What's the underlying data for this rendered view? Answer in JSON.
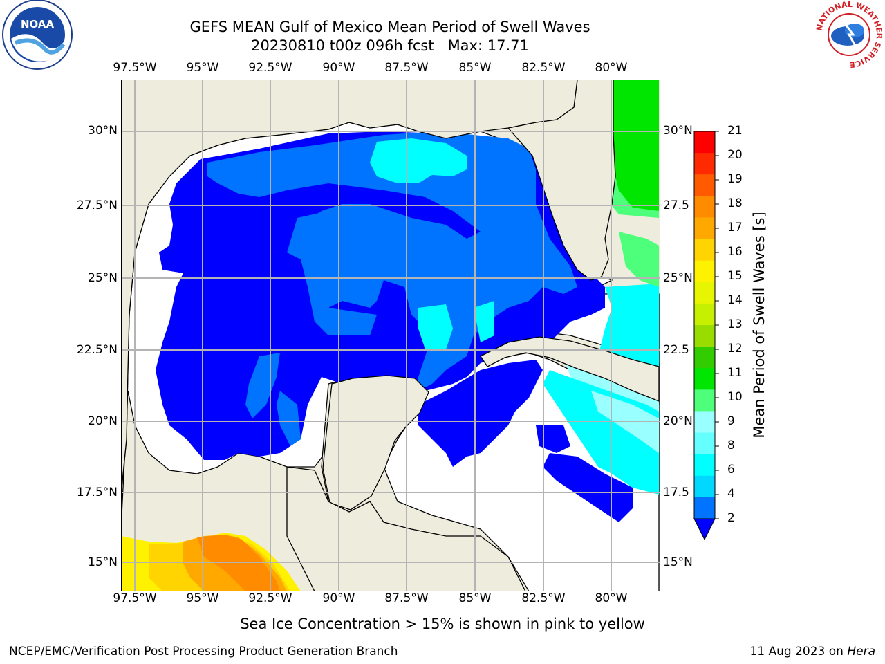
{
  "title": {
    "line1": "GEFS MEAN Gulf of Mexico Mean Period of Swell Waves",
    "line2": "20230810 t00z 096h fcst   Max: 17.71"
  },
  "map": {
    "lon_labels": [
      "97.5°W",
      "95°W",
      "92.5°W",
      "90°W",
      "87.5°W",
      "85°W",
      "82.5°W",
      "80°W"
    ],
    "lat_labels_left": [
      "30°N",
      "27.5°N",
      "25°N",
      "22.5°N",
      "20°N",
      "17.5°N",
      "15°N"
    ],
    "lat_labels_right": [
      "30°N",
      "27.5",
      "25°N",
      "22.5",
      "20°N",
      "17.5",
      "15°N"
    ],
    "colors": {
      "land": "#eeecdc",
      "grid": "#b4b4b4",
      "c2": "#0000ff",
      "c4": "#0073ff",
      "c6": "#00d8ff",
      "c8": "#00ffff",
      "c9": "#99ffff",
      "c10": "#4dff7a",
      "c11": "#00e600",
      "c15": "#fff200",
      "c16": "#ffd400",
      "c17": "#ffa900",
      "c18": "#ff8c00"
    }
  },
  "colorbar": {
    "label": "Mean Period of Swell Waves [s]",
    "ticks": [
      "2",
      "4",
      "6",
      "8",
      "9",
      "10",
      "11",
      "12",
      "13",
      "14",
      "15",
      "16",
      "17",
      "18",
      "19",
      "20",
      "21"
    ],
    "colors": [
      "#0073ff",
      "#00d8ff",
      "#00ffff",
      "#66ffff",
      "#99ffff",
      "#4dff7a",
      "#00e600",
      "#33cc00",
      "#99dd00",
      "#c7f000",
      "#e8f500",
      "#fff200",
      "#ffd400",
      "#ffa900",
      "#ff8c00",
      "#ff5a00",
      "#ff2a00",
      "#ff0000"
    ],
    "under_color": "#0000ff"
  },
  "footnote": "Sea Ice Concentration > 15% is shown in pink to yellow",
  "footer": {
    "org": "NCEP/EMC/Verification Post Processing Product Generation Branch",
    "date": "11 Aug 2023 on ",
    "host": "Hera"
  },
  "logos": {
    "left": "NOAA",
    "right_ring": "NATIONAL WEATHER SERVICE"
  }
}
